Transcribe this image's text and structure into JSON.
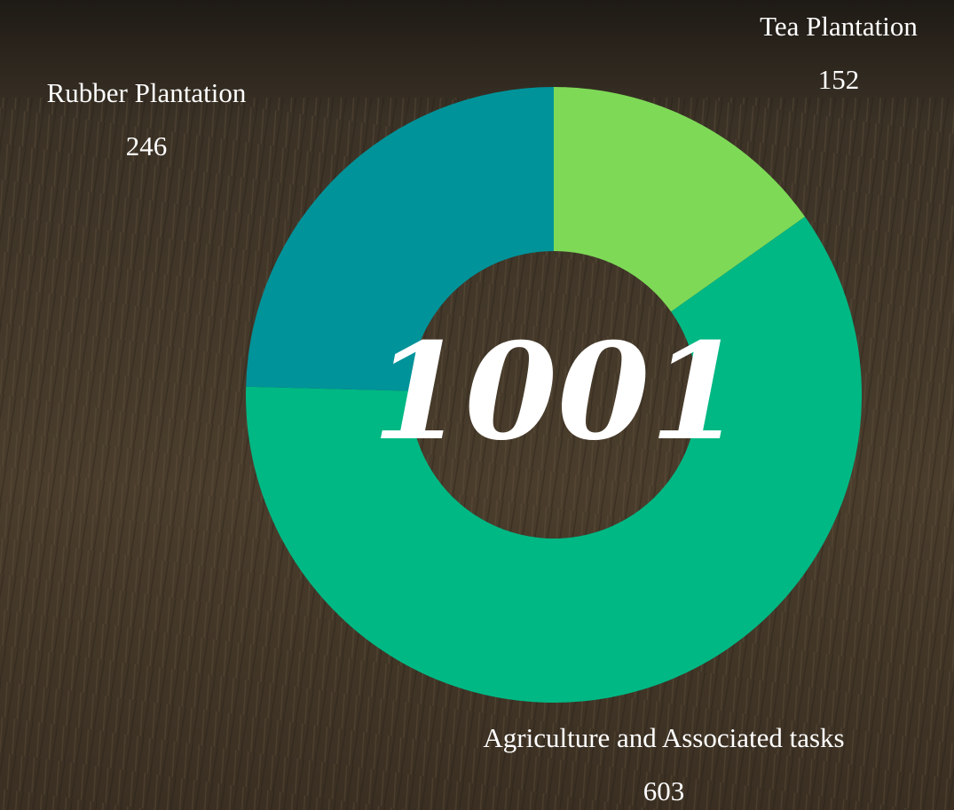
{
  "chart_data": {
    "type": "donut",
    "categories": [
      "Tea Plantation",
      "Agriculture and Associated tasks",
      "Rubber Plantation"
    ],
    "values": [
      152,
      603,
      246
    ],
    "colors": [
      "#7ed957",
      "#00b884",
      "#00939a"
    ],
    "total": 1001
  }
}
